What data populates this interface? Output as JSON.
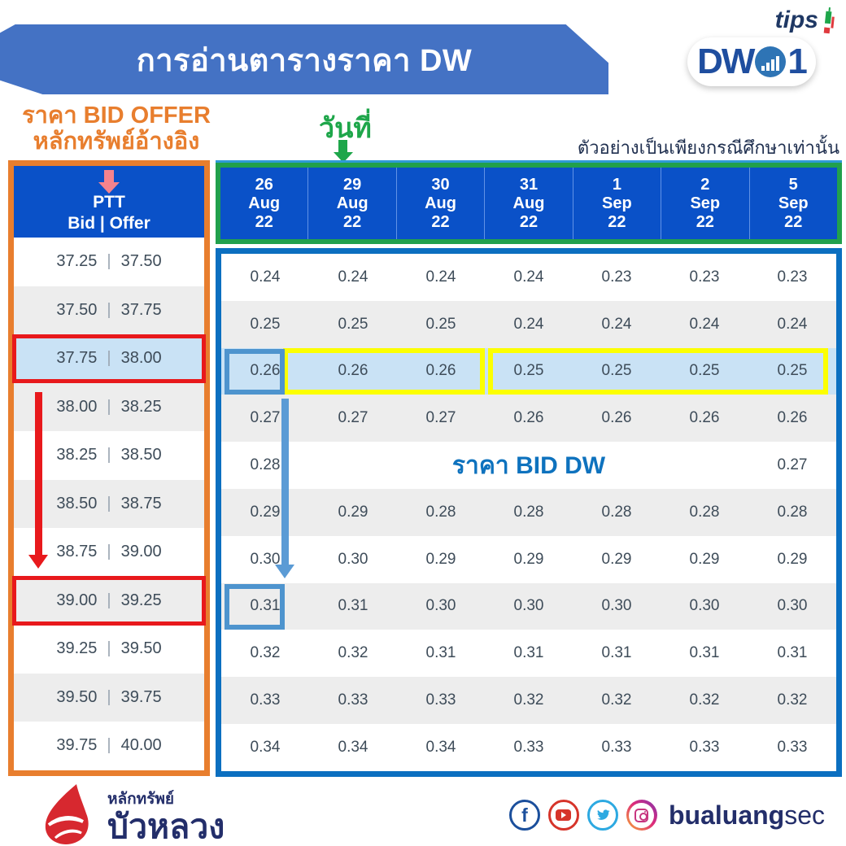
{
  "banner": {
    "title": "การอ่านตารางราคา DW"
  },
  "logos": {
    "tips_text": "tips",
    "dw_text": "DW",
    "dw_number": "1",
    "bualuang_small": "หลักทรัพย์",
    "bualuang_large": "บัวหลวง",
    "handle_bold": "bualuang",
    "handle_light": "sec"
  },
  "annotations": {
    "bid_offer_line1": "ราคา BID OFFER",
    "bid_offer_line2": "หลักทรัพย์อ้างอิง",
    "date_label": "วันที่",
    "disclaimer": "ตัวอย่างเป็นเพียงกรณีศึกษาเท่านั้น",
    "bid_dw_label": "ราคา BID DW"
  },
  "left_table": {
    "header_symbol": "PTT",
    "header_sub": "Bid | Offer",
    "rows": [
      {
        "bid": "37.25",
        "offer": "37.50"
      },
      {
        "bid": "37.50",
        "offer": "37.75"
      },
      {
        "bid": "37.75",
        "offer": "38.00"
      },
      {
        "bid": "38.00",
        "offer": "38.25"
      },
      {
        "bid": "38.25",
        "offer": "38.50"
      },
      {
        "bid": "38.50",
        "offer": "38.75"
      },
      {
        "bid": "38.75",
        "offer": "39.00"
      },
      {
        "bid": "39.00",
        "offer": "39.25"
      },
      {
        "bid": "39.25",
        "offer": "39.50"
      },
      {
        "bid": "39.50",
        "offer": "39.75"
      },
      {
        "bid": "39.75",
        "offer": "40.00"
      }
    ],
    "highlight_blue_row": 2,
    "red_box_rows": [
      2,
      7
    ]
  },
  "right_table": {
    "columns": [
      {
        "day": "26",
        "month": "Aug",
        "year": "22"
      },
      {
        "day": "29",
        "month": "Aug",
        "year": "22"
      },
      {
        "day": "30",
        "month": "Aug",
        "year": "22"
      },
      {
        "day": "31",
        "month": "Aug",
        "year": "22"
      },
      {
        "day": "1",
        "month": "Sep",
        "year": "22"
      },
      {
        "day": "2",
        "month": "Sep",
        "year": "22"
      },
      {
        "day": "5",
        "month": "Sep",
        "year": "22"
      }
    ],
    "rows": [
      [
        "0.24",
        "0.24",
        "0.24",
        "0.24",
        "0.23",
        "0.23",
        "0.23"
      ],
      [
        "0.25",
        "0.25",
        "0.25",
        "0.24",
        "0.24",
        "0.24",
        "0.24"
      ],
      [
        "0.26",
        "0.26",
        "0.26",
        "0.25",
        "0.25",
        "0.25",
        "0.25"
      ],
      [
        "0.27",
        "0.27",
        "0.27",
        "0.26",
        "0.26",
        "0.26",
        "0.26"
      ],
      [
        "0.28",
        null,
        null,
        null,
        null,
        null,
        "0.27"
      ],
      [
        "0.29",
        "0.29",
        "0.28",
        "0.28",
        "0.28",
        "0.28",
        "0.28"
      ],
      [
        "0.30",
        "0.30",
        "0.29",
        "0.29",
        "0.29",
        "0.29",
        "0.29"
      ],
      [
        "0.31",
        "0.31",
        "0.30",
        "0.30",
        "0.30",
        "0.30",
        "0.30"
      ],
      [
        "0.32",
        "0.32",
        "0.31",
        "0.31",
        "0.31",
        "0.31",
        "0.31"
      ],
      [
        "0.33",
        "0.33",
        "0.33",
        "0.32",
        "0.32",
        "0.32",
        "0.32"
      ],
      [
        "0.34",
        "0.34",
        "0.34",
        "0.33",
        "0.33",
        "0.33",
        "0.33"
      ]
    ],
    "highlight_row": 2,
    "label_row": 4,
    "blue_box_rows": [
      2,
      7
    ]
  },
  "social": {
    "icons": [
      "facebook-icon",
      "youtube-icon",
      "twitter-icon",
      "instagram-icon"
    ]
  },
  "colors": {
    "banner_blue": "#4472C4",
    "header_blue": "#0A51C8",
    "orange": "#E87E2E",
    "green": "#21A04C",
    "body_border_blue": "#0B6FC0",
    "highlight_blue_bg": "#C9E2F5",
    "yellow": "#FCFF00",
    "red": "#E8191C",
    "arrow_blue": "#5B9BD5",
    "salmon": "#F4838D",
    "navy": "#232E6A",
    "gray_row": "#EDEDED"
  }
}
